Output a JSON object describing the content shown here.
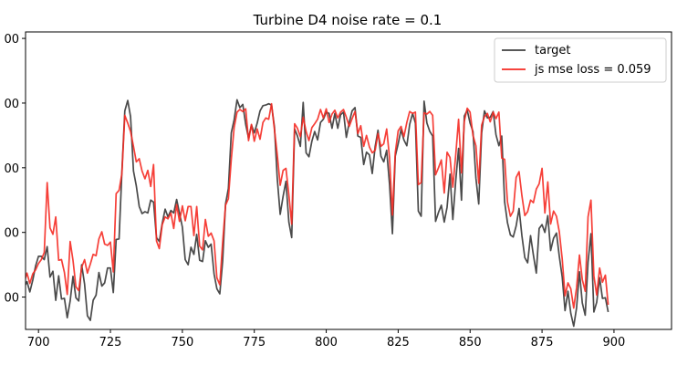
{
  "chart_data": {
    "type": "line",
    "title": "Turbine D4 noise rate = 0.1",
    "xlabel": "",
    "ylabel": "",
    "xlim": [
      695.5,
      920
    ],
    "ylim": [
      0.0,
      460.0
    ],
    "x_ticks": [
      700,
      725,
      750,
      775,
      800,
      825,
      850,
      875,
      900
    ],
    "x_tick_labels": [
      "700",
      "725",
      "750",
      "775",
      "800",
      "825",
      "850",
      "875",
      "900"
    ],
    "y_ticks": [
      50,
      150,
      250,
      350,
      450
    ],
    "y_tick_labels": [
      "00",
      "00",
      "00",
      "00",
      "00"
    ],
    "grid": false,
    "legend_position": "upper right",
    "series": [
      {
        "name": "target",
        "color": "#404040",
        "x_start": 695,
        "values": [
          65.0,
          74.0,
          58.0,
          76.0,
          98.0,
          113.0,
          113.0,
          108.0,
          128.0,
          81.0,
          90.0,
          45.0,
          83.0,
          47.0,
          48.0,
          18.0,
          44.0,
          82.0,
          49.0,
          44.0,
          100.0,
          70.0,
          21.0,
          14.0,
          45.0,
          53.0,
          88.0,
          67.0,
          72.0,
          95.0,
          95.0,
          57.0,
          139.0,
          140.0,
          244.0,
          338.0,
          354.0,
          329.0,
          245.0,
          222.0,
          190.0,
          179.0,
          182.0,
          180.0,
          200.0,
          197.0,
          142.0,
          136.0,
          164.0,
          186.0,
          174.0,
          184.0,
          180.0,
          201.0,
          180.0,
          158.0,
          108.0,
          100.0,
          127.0,
          116.0,
          147.0,
          107.0,
          105.0,
          137.0,
          127.0,
          132.0,
          86.0,
          63.0,
          55.0,
          105.0,
          194.0,
          218.0,
          304.0,
          324.0,
          355.0,
          343.0,
          348.0,
          317.0,
          296.0,
          316.0,
          304.0,
          319.0,
          338.0,
          346.0,
          347.0,
          349.0,
          347.0,
          313.0,
          233.0,
          178.0,
          206.0,
          229.0,
          166.0,
          142.0,
          310.0,
          299.0,
          283.0,
          351.0,
          273.0,
          267.0,
          291.0,
          306.0,
          293.0,
          320.0,
          325.0,
          336.0,
          334.0,
          311.0,
          334.0,
          311.0,
          332.0,
          336.0,
          297.0,
          320.0,
          338.0,
          343.0,
          299.0,
          297.0,
          255.0,
          274.0,
          270.0,
          241.0,
          283.0,
          308.0,
          268.0,
          259.0,
          277.0,
          225.0,
          148.0,
          268.0,
          287.0,
          309.0,
          293.0,
          284.0,
          317.0,
          334.0,
          319.0,
          183.0,
          175.0,
          353.0,
          319.0,
          306.0,
          299.0,
          167.0,
          181.0,
          192.0,
          166.0,
          189.0,
          240.0,
          170.0,
          230.0,
          280.0,
          200.0,
          330.0,
          339.0,
          319.0,
          306.0,
          234.0,
          194.0,
          304.0,
          338.0,
          327.0,
          328.0,
          337.0,
          301.0,
          284.0,
          299.0,
          197.0,
          165.0,
          146.0,
          143.0,
          160.0,
          187.0,
          145.0,
          111.0,
          103.0,
          145.0,
          115.0,
          87.0,
          156.0,
          162.0,
          150.0,
          176.0,
          122.0,
          141.0,
          149.0,
          113.0,
          81.0,
          29.0,
          59.0,
          25.0,
          5.0,
          33.0,
          89.0,
          41.0,
          22.0,
          104.0,
          148.0,
          27.0,
          42.0,
          80.0,
          48.0,
          49.0,
          27.0
        ]
      },
      {
        "name": "js mse loss = 0.059",
        "color": "#f52a22",
        "x_start": 695,
        "values": [
          72.0,
          87.0,
          71.0,
          86.0,
          92.0,
          102.0,
          108.0,
          119.0,
          227.0,
          157.0,
          147.0,
          174.0,
          107.0,
          108.0,
          88.0,
          54.0,
          136.0,
          107.0,
          66.0,
          60.0,
          96.0,
          108.0,
          87.0,
          101.0,
          116.0,
          114.0,
          140.0,
          151.0,
          132.0,
          130.0,
          135.0,
          89.0,
          210.0,
          215.0,
          241.0,
          331.0,
          319.0,
          306.0,
          283.0,
          259.0,
          264.0,
          245.0,
          233.0,
          246.0,
          221.0,
          255.0,
          137.0,
          125.0,
          162.0,
          174.0,
          171.0,
          180.0,
          156.0,
          193.0,
          167.0,
          191.0,
          168.0,
          190.0,
          190.0,
          145.0,
          190.0,
          129.0,
          123.0,
          170.0,
          144.0,
          149.0,
          137.0,
          80.0,
          69.0,
          134.0,
          192.0,
          202.0,
          263.0,
          312.0,
          336.0,
          340.0,
          337.0,
          341.0,
          292.0,
          317.0,
          291.0,
          310.0,
          294.0,
          320.0,
          327.0,
          325.0,
          349.0,
          309.0,
          270.0,
          223.0,
          246.0,
          249.0,
          208.0,
          163.0,
          318.0,
          311.0,
          298.0,
          328.0,
          306.0,
          292.0,
          312.0,
          318.0,
          325.0,
          340.0,
          327.0,
          341.0,
          320.0,
          333.0,
          339.0,
          327.0,
          336.0,
          340.0,
          328.0,
          314.0,
          326.0,
          337.0,
          303.0,
          315.0,
          283.0,
          300.0,
          282.0,
          273.0,
          277.0,
          303.0,
          283.0,
          287.0,
          310.0,
          266.0,
          177.0,
          273.0,
          307.0,
          314.0,
          298.0,
          320.0,
          337.0,
          334.0,
          336.0,
          224.0,
          227.0,
          335.0,
          333.0,
          337.0,
          331.0,
          239.0,
          250.0,
          262.0,
          211.0,
          274.0,
          266.0,
          220.0,
          270.0,
          325.0,
          242.0,
          322.0,
          342.0,
          336.0,
          300.0,
          284.0,
          226.0,
          316.0,
          329.0,
          334.0,
          321.0,
          336.0,
          326.0,
          336.0,
          265.0,
          263.0,
          197.0,
          175.0,
          183.0,
          235.0,
          244.0,
          207.0,
          176.0,
          182.0,
          200.0,
          196.0,
          217.0,
          225.0,
          249.0,
          180.0,
          228.0,
          163.0,
          183.0,
          175.0,
          151.0,
          109.0,
          52.0,
          72.0,
          63.0,
          33.0,
          64.0,
          115.0,
          77.0,
          59.0,
          174.0,
          200.0,
          83.0,
          53.0,
          95.0,
          73.0,
          84.0,
          38.0
        ]
      }
    ]
  }
}
